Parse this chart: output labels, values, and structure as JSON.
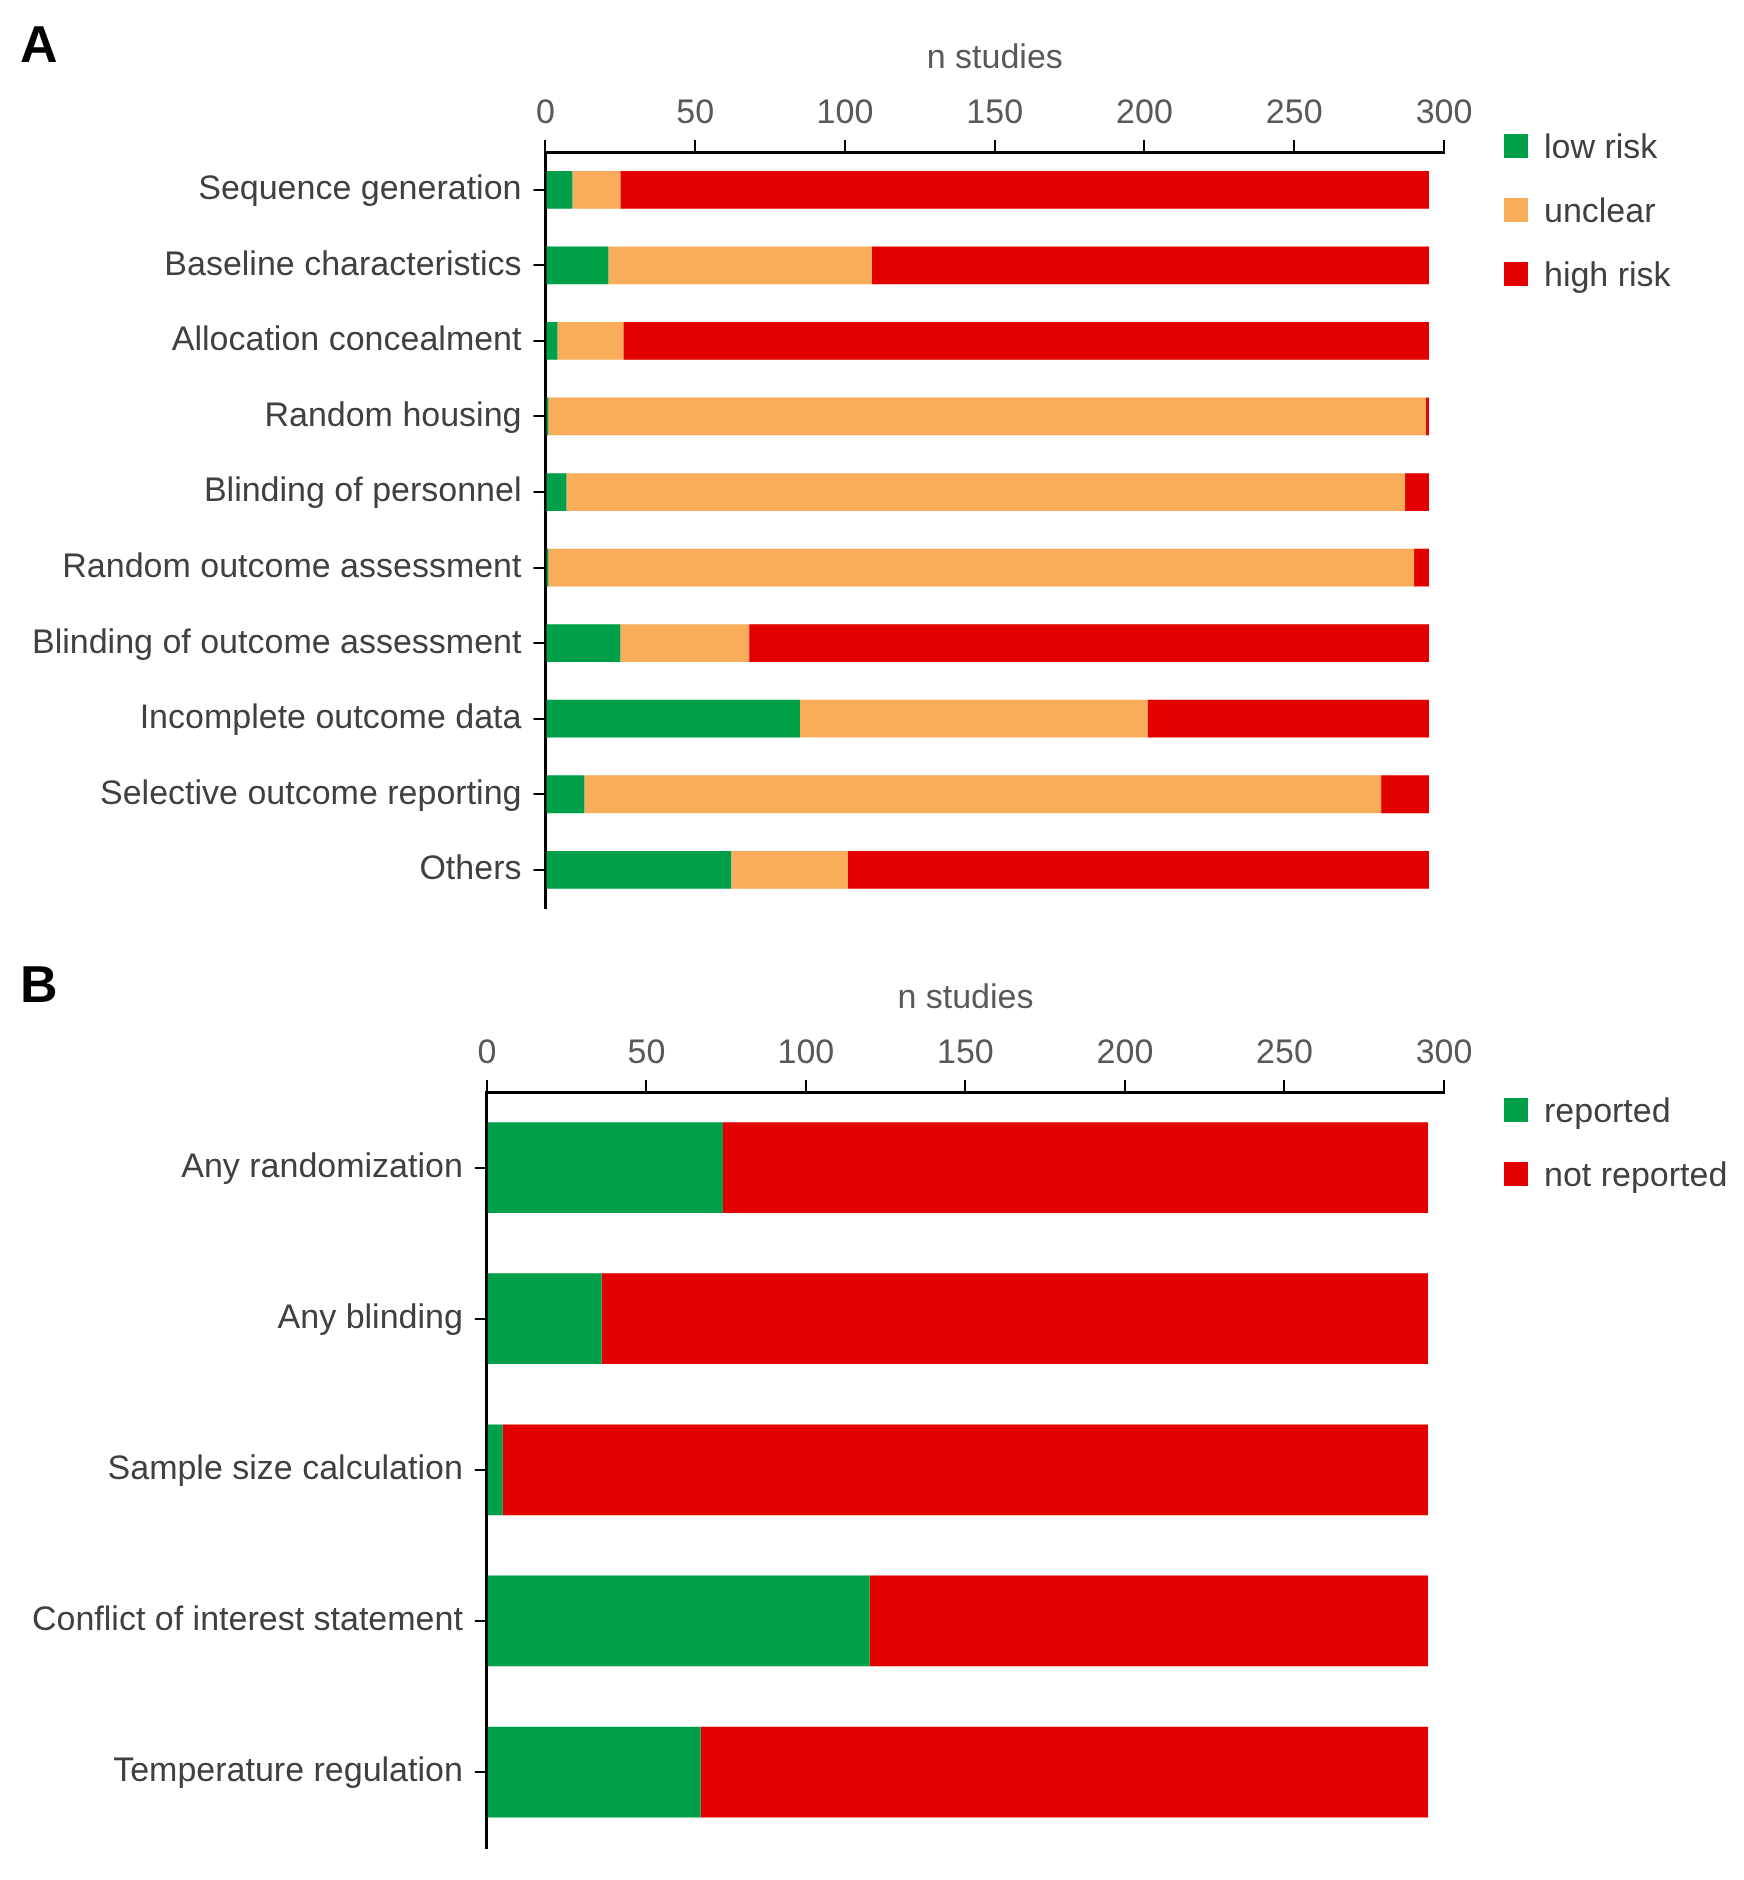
{
  "chart_data": [
    {
      "type": "bar",
      "orientation": "horizontal",
      "stacked": true,
      "title": "A",
      "xlabel": "n studies",
      "xlim": [
        0,
        300
      ],
      "xticks": [
        0,
        50,
        100,
        150,
        200,
        250,
        300
      ],
      "legend": "right",
      "categories": [
        "Sequence generation",
        "Baseline characteristics",
        "Allocation concealment",
        "Random housing",
        "Blinding of personnel",
        "Random outcome assessment",
        "Blinding of outcome assessment",
        "Incomplete outcome data",
        "Selective outcome reporting",
        "Others"
      ],
      "series": [
        {
          "name": "low risk",
          "color": "#00a04a",
          "values": [
            9,
            21,
            4,
            1,
            7,
            1,
            25,
            85,
            13,
            62
          ]
        },
        {
          "name": "unclear",
          "color": "#f9ad5a",
          "values": [
            16,
            88,
            22,
            293,
            280,
            289,
            43,
            116,
            266,
            39
          ]
        },
        {
          "name": "high risk",
          "color": "#e30000",
          "values": [
            270,
            186,
            269,
            1,
            8,
            5,
            227,
            94,
            16,
            194
          ]
        }
      ]
    },
    {
      "type": "bar",
      "orientation": "horizontal",
      "stacked": true,
      "title": "B",
      "xlabel": "n studies",
      "xlim": [
        0,
        300
      ],
      "xticks": [
        0,
        50,
        100,
        150,
        200,
        250,
        300
      ],
      "legend": "right",
      "categories": [
        "Any randomization",
        "Any blinding",
        "Sample size calculation",
        "Conflict of interest statement",
        "Temperature regulation"
      ],
      "series": [
        {
          "name": "reported",
          "color": "#00a04a",
          "values": [
            74,
            36,
            5,
            120,
            67
          ]
        },
        {
          "name": "not reported",
          "color": "#e30000",
          "values": [
            221,
            259,
            290,
            175,
            228
          ]
        }
      ]
    }
  ]
}
